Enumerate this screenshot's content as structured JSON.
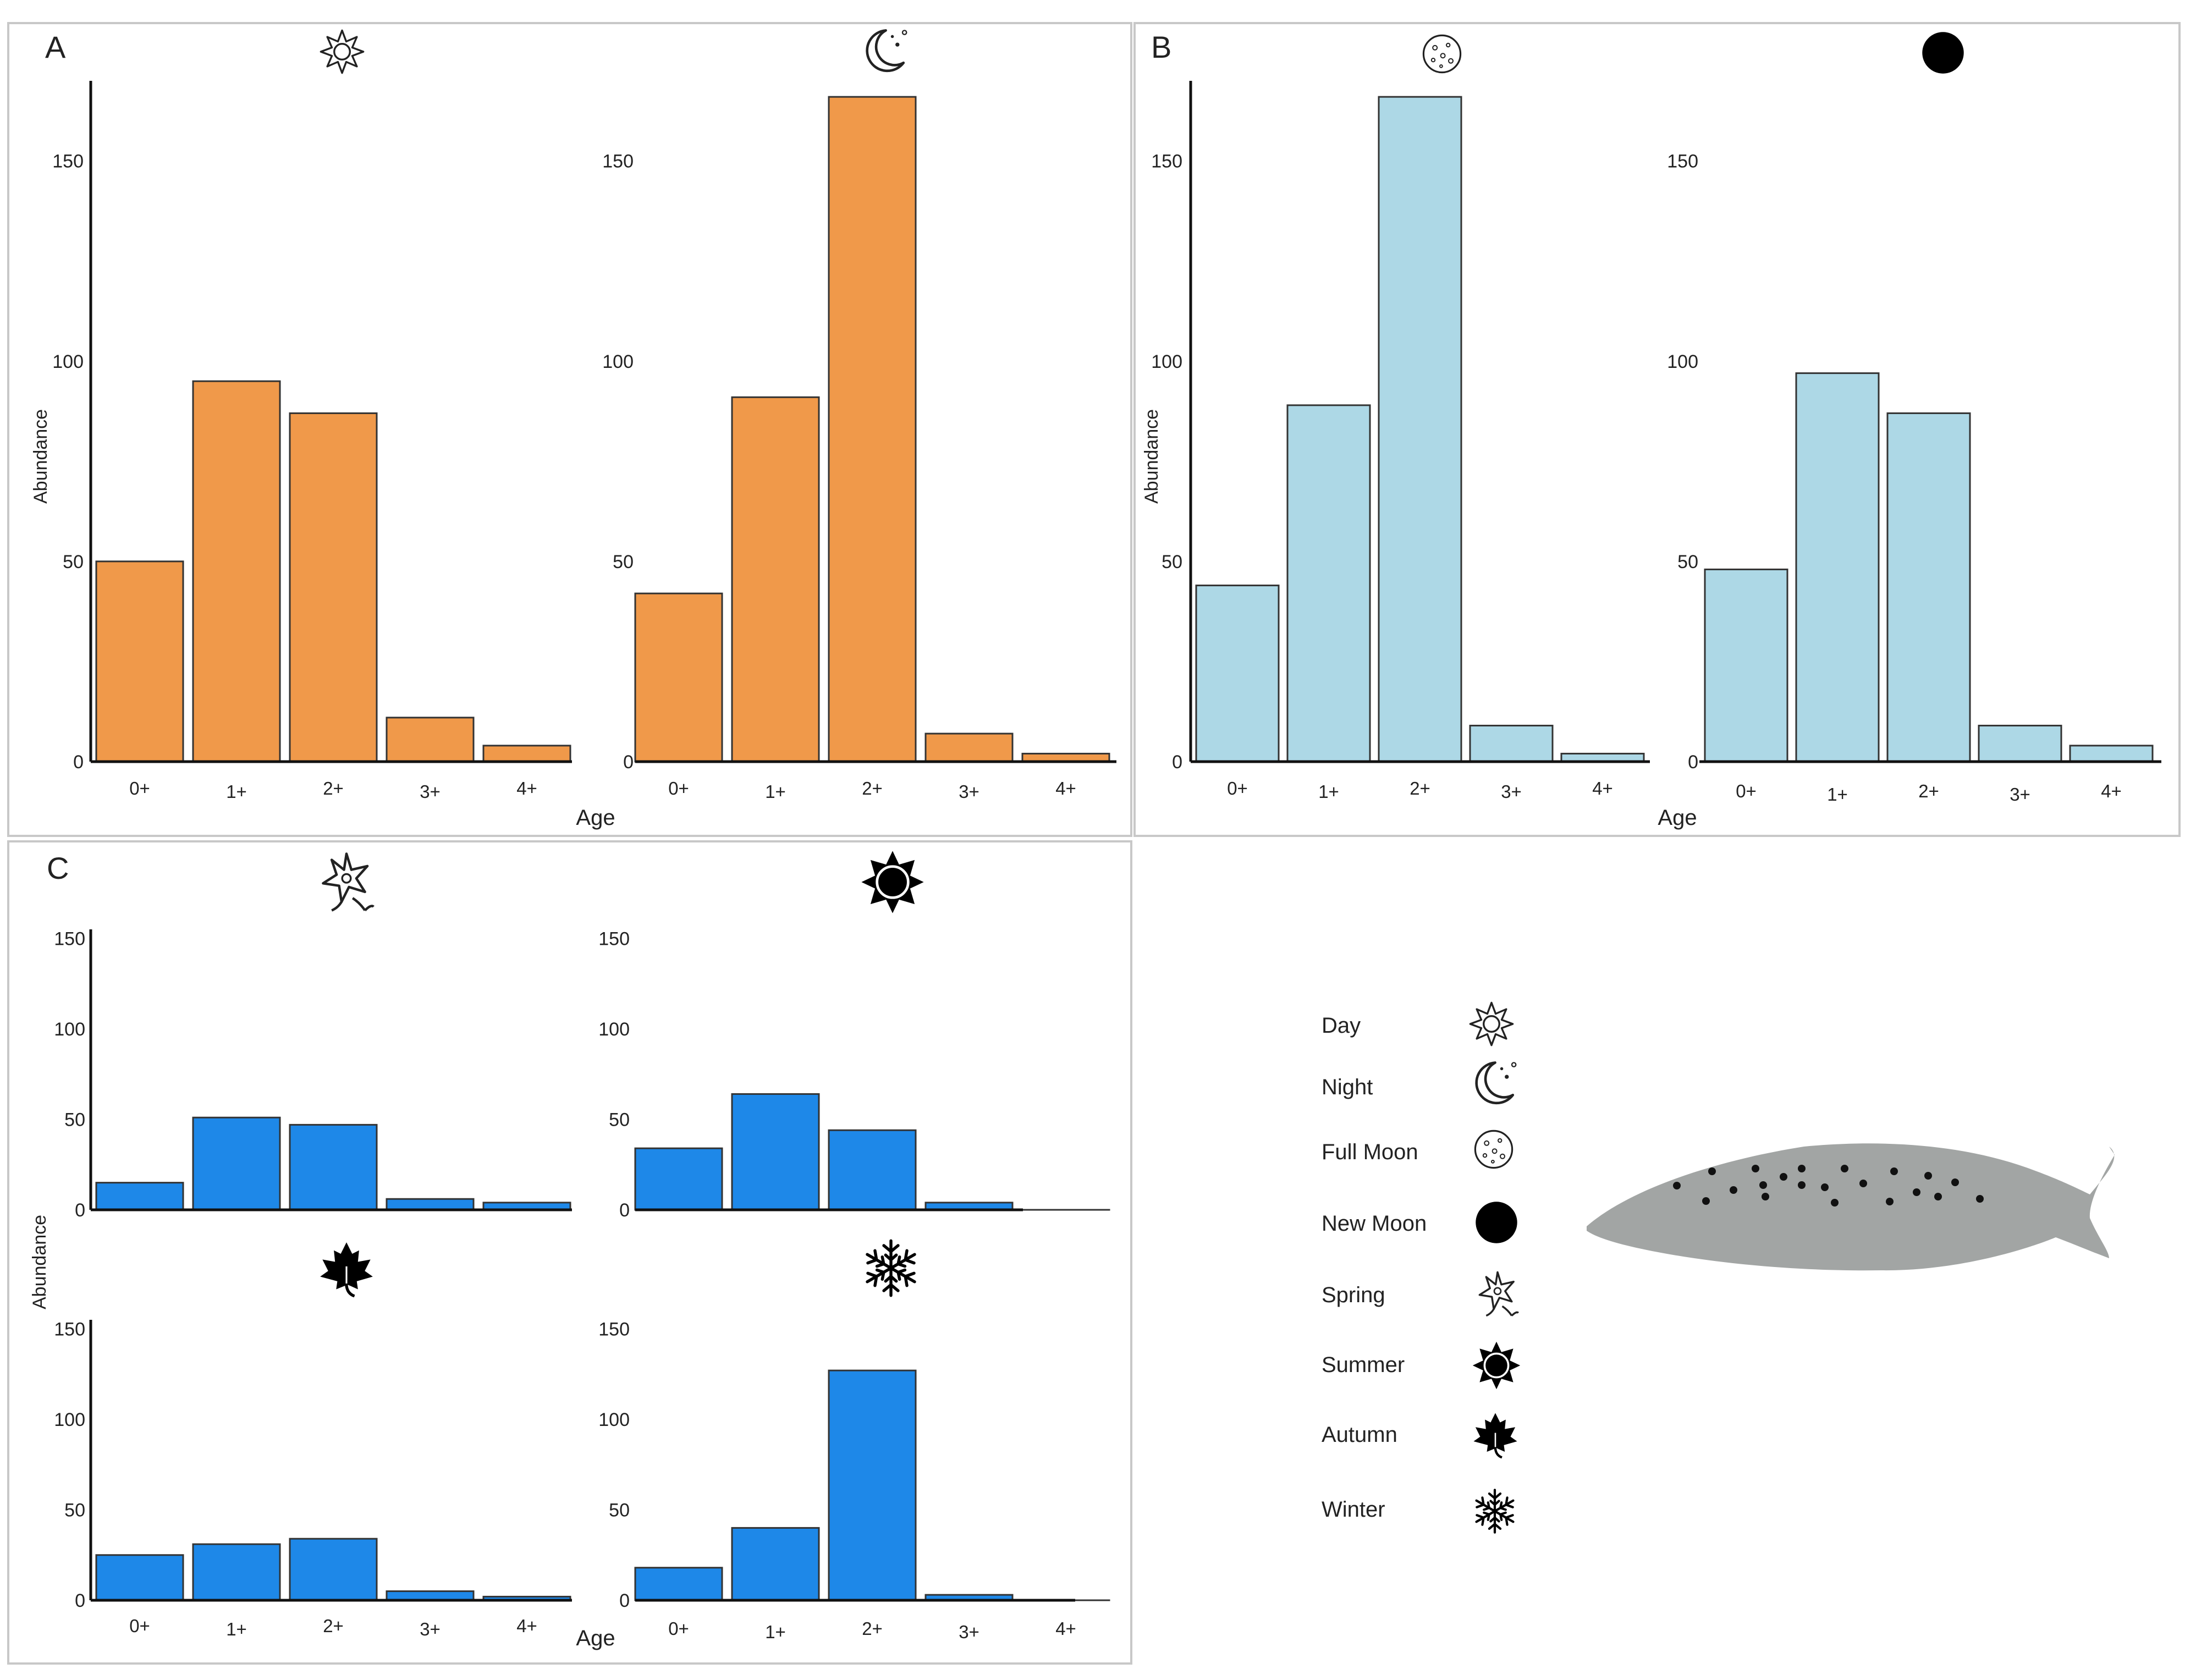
{
  "colors": {
    "orange": "#F0994A",
    "lightblue": "#ADD8E6",
    "blue": "#1E88E8",
    "bar_stroke": "#333333",
    "axis": "#111111",
    "panel_border": "#c8c8c8",
    "fish_body": "#a2a5a4",
    "fish_spot": "#111111"
  },
  "panels": {
    "A": {
      "letter": "A"
    },
    "B": {
      "letter": "B"
    },
    "C": {
      "letter": "C"
    }
  },
  "legend": {
    "items": [
      {
        "label": "Day",
        "icon": "sun-outline-icon"
      },
      {
        "label": "Night",
        "icon": "crescent-moon-icon"
      },
      {
        "label": "Full Moon",
        "icon": "full-moon-icon"
      },
      {
        "label": "New Moon",
        "icon": "new-moon-icon"
      },
      {
        "label": "Spring",
        "icon": "spring-flower-icon"
      },
      {
        "label": "Summer",
        "icon": "sun-filled-icon"
      },
      {
        "label": "Autumn",
        "icon": "maple-leaf-icon"
      },
      {
        "label": "Winter",
        "icon": "snowflake-icon"
      }
    ]
  },
  "fish": {
    "icon": "fish-illustration"
  },
  "chart_data": [
    {
      "panel": "A",
      "condition_icon": "sun-outline-icon",
      "type": "bar",
      "categories": [
        "0+",
        "1+",
        "2+",
        "3+",
        "4+"
      ],
      "values": [
        50,
        95,
        87,
        11,
        4
      ],
      "ylim": [
        0,
        170
      ],
      "yticks": [
        "0",
        "50",
        "100",
        "150"
      ],
      "ylabel": "Abundance",
      "xlabel": "",
      "color": "orange"
    },
    {
      "panel": "A",
      "condition_icon": "crescent-moon-icon",
      "type": "bar",
      "categories": [
        "0+",
        "1+",
        "2+",
        "3+",
        "4+"
      ],
      "values": [
        42,
        91,
        166,
        7,
        2
      ],
      "ylim": [
        0,
        170
      ],
      "yticks": [
        "0",
        "50",
        "100",
        "150"
      ],
      "ylabel": "",
      "xlabel": "Age",
      "color": "orange"
    },
    {
      "panel": "B",
      "condition_icon": "full-moon-icon",
      "type": "bar",
      "categories": [
        "0+",
        "1+",
        "2+",
        "3+",
        "4+"
      ],
      "values": [
        44,
        89,
        166,
        9,
        2
      ],
      "ylim": [
        0,
        170
      ],
      "yticks": [
        "0",
        "50",
        "100",
        "150"
      ],
      "ylabel": "Abundance",
      "xlabel": "",
      "color": "lightblue"
    },
    {
      "panel": "B",
      "condition_icon": "new-moon-icon",
      "type": "bar",
      "categories": [
        "0+",
        "1+",
        "2+",
        "3+",
        "4+"
      ],
      "values": [
        48,
        97,
        87,
        9,
        4
      ],
      "ylim": [
        0,
        170
      ],
      "yticks": [
        "0",
        "50",
        "100",
        "150"
      ],
      "ylabel": "",
      "xlabel": "Age",
      "color": "lightblue"
    },
    {
      "panel": "C",
      "condition_icon": "spring-flower-icon",
      "type": "bar",
      "categories": [
        "0+",
        "1+",
        "2+",
        "3+",
        "4+"
      ],
      "values": [
        15,
        51,
        47,
        6,
        4
      ],
      "ylim": [
        0,
        155
      ],
      "yticks": [
        "0",
        "50",
        "100",
        "150"
      ],
      "ylabel": "",
      "xlabel": "",
      "color": "blue"
    },
    {
      "panel": "C",
      "condition_icon": "sun-filled-icon",
      "type": "bar",
      "categories": [
        "0+",
        "1+",
        "2+",
        "3+",
        "4+"
      ],
      "values": [
        34,
        64,
        44,
        4,
        0
      ],
      "ylim": [
        0,
        155
      ],
      "yticks": [
        "0",
        "50",
        "100",
        "150"
      ],
      "ylabel": "",
      "xlabel": "",
      "color": "blue"
    },
    {
      "panel": "C",
      "condition_icon": "maple-leaf-icon",
      "type": "bar",
      "categories": [
        "0+",
        "1+",
        "2+",
        "3+",
        "4+"
      ],
      "values": [
        25,
        31,
        34,
        5,
        2
      ],
      "ylim": [
        0,
        155
      ],
      "yticks": [
        "0",
        "50",
        "100",
        "150"
      ],
      "ylabel": "Abundance",
      "xlabel": "",
      "color": "blue"
    },
    {
      "panel": "C",
      "condition_icon": "snowflake-icon",
      "type": "bar",
      "categories": [
        "0+",
        "1+",
        "2+",
        "3+",
        "4+"
      ],
      "values": [
        18,
        40,
        127,
        3,
        0
      ],
      "ylim": [
        0,
        155
      ],
      "yticks": [
        "0",
        "50",
        "100",
        "150"
      ],
      "ylabel": "",
      "xlabel": "Age",
      "color": "blue"
    }
  ]
}
